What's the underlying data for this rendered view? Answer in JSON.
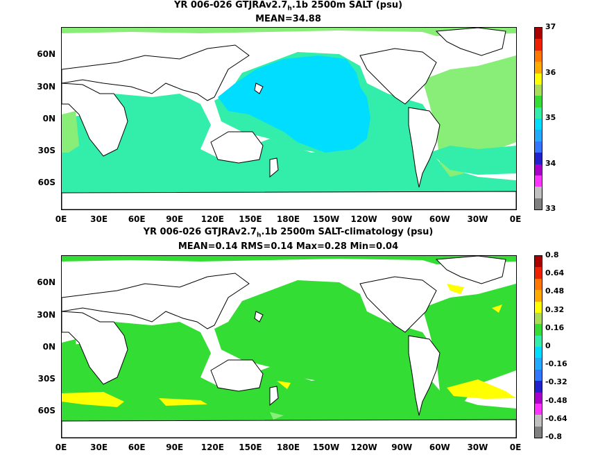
{
  "panels": [
    {
      "title_prefix": "YR 006-026 GTJRAv2.7",
      "title_sub": "h",
      "title_suffix": ".1b 2500m SALT (psu)",
      "stats": "MEAN=34.88",
      "colorbar": {
        "labels": [
          "37",
          "36",
          "35",
          "34",
          "33"
        ],
        "colors": [
          "#808080",
          "#c0c0c0",
          "#ff33ff",
          "#aa00cc",
          "#2222cc",
          "#3377ff",
          "#22aaff",
          "#00ddff",
          "#33eeaa",
          "#33dd33",
          "#aadd55",
          "#ffff00",
          "#ffaa00",
          "#ff7700",
          "#ee2200",
          "#aa0000"
        ]
      },
      "field": {
        "background": "#ffffff",
        "basin_fill": "#33eeaa",
        "pacific_core": "#00ddff",
        "atlantic_fill": "#88ee77"
      }
    },
    {
      "title_prefix": "YR 006-026 GTJRAv2.7",
      "title_sub": "h",
      "title_suffix": ".1b 2500m SALT-climatology (psu)",
      "stats": "MEAN=0.14   RMS=0.14   Max=0.28   Min=0.04",
      "colorbar": {
        "labels": [
          "0.8",
          "0.64",
          "0.48",
          "0.32",
          "0.16",
          "0",
          "-0.16",
          "-0.32",
          "-0.48",
          "-0.64",
          "-0.8"
        ],
        "colors": [
          "#808080",
          "#c0c0c0",
          "#ff33ff",
          "#aa00cc",
          "#2222cc",
          "#3377ff",
          "#22aaff",
          "#00ddff",
          "#33eeaa",
          "#33dd33",
          "#aadd55",
          "#ffff00",
          "#ffaa00",
          "#ff7700",
          "#ee2200",
          "#aa0000"
        ]
      },
      "field": {
        "background": "#ffffff",
        "basin_fill": "#33dd33",
        "anomaly_high": "#ffff00",
        "anomaly_low": "#88ee77"
      }
    }
  ],
  "axes": {
    "lat_labels": [
      "60N",
      "30N",
      "0N",
      "30S",
      "60S"
    ],
    "lon_labels": [
      "0E",
      "30E",
      "60E",
      "90E",
      "120E",
      "150E",
      "180E",
      "150W",
      "120W",
      "90W",
      "60W",
      "30W",
      "0E"
    ]
  }
}
